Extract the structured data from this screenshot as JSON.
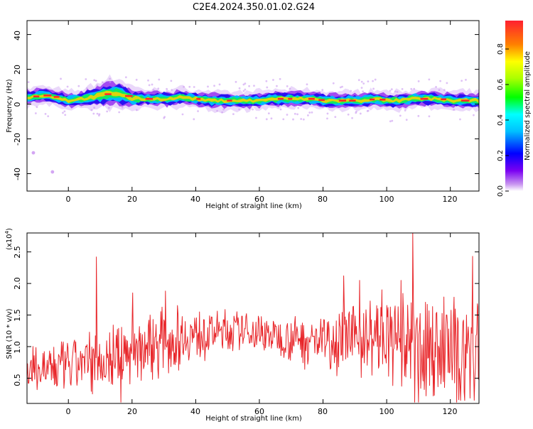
{
  "figure": {
    "title": "C2E4.2024.350.01.02.G24"
  },
  "chart_data": [
    {
      "type": "heatmap",
      "xlabel": "Height of straight line (km)",
      "ylabel": "Frequency (Hz)",
      "xlim": [
        -13,
        129
      ],
      "ylim": [
        -50,
        48
      ],
      "xticks": [
        "0",
        "20",
        "40",
        "60",
        "80",
        "100",
        "120"
      ],
      "yticks": [
        "-40",
        "-20",
        "0",
        "20",
        "40"
      ],
      "colorbar": {
        "label": "Normalized spectral amplitude",
        "range": [
          0,
          0.96
        ],
        "ticks": [
          "0.0",
          "0.2",
          "0.4",
          "0.6",
          "0.8"
        ]
      },
      "ridge": {
        "x": [
          -13,
          -8,
          -4,
          0,
          4,
          8,
          12,
          16,
          20,
          24,
          28,
          32,
          36,
          40,
          44,
          48,
          52,
          56,
          60,
          64,
          68,
          72,
          76,
          80,
          84,
          88,
          92,
          96,
          100,
          104,
          108,
          112,
          116,
          120,
          124,
          129
        ],
        "center_hz": [
          4,
          5,
          4,
          2,
          3,
          4,
          6,
          6,
          3,
          3,
          3,
          3,
          4,
          3,
          2,
          2,
          2,
          2,
          2,
          3,
          3,
          3,
          3,
          2,
          2,
          2,
          2,
          3,
          2,
          2,
          3,
          3,
          3,
          2,
          2,
          2
        ],
        "halfwidth_hz": [
          3,
          3,
          3,
          3,
          3,
          4,
          5,
          5,
          4,
          3,
          3,
          3,
          3,
          3,
          3,
          3,
          3,
          3,
          3,
          3,
          3,
          3,
          3,
          3,
          3,
          3,
          3,
          3,
          3,
          3,
          3,
          3,
          3,
          3,
          3,
          3
        ]
      },
      "outliers": [
        {
          "x": -5,
          "y": -39
        },
        {
          "x": -11,
          "y": -28
        }
      ]
    },
    {
      "type": "line",
      "xlabel": "Height of straight line (km)",
      "ylabel": "SNR (10 * v/v)",
      "y_multiplier": "(x10",
      "y_multiplier_exp": "4",
      "xlim": [
        -13,
        129
      ],
      "ylim": [
        0.1,
        2.8
      ],
      "xticks": [
        "0",
        "20",
        "40",
        "60",
        "80",
        "100",
        "120"
      ],
      "yticks": [
        "0.5",
        "1.0",
        "1.5",
        "2.0",
        "2.5"
      ],
      "color": "#e8262a",
      "envelope": {
        "x": [
          -13,
          -5,
          5,
          15,
          25,
          35,
          45,
          55,
          65,
          75,
          85,
          95,
          105,
          115,
          125,
          129
        ],
        "mean": [
          0.6,
          0.65,
          0.72,
          0.85,
          1.02,
          1.15,
          1.22,
          1.25,
          1.18,
          1.1,
          1.12,
          1.15,
          1.05,
          0.95,
          0.92,
          0.9
        ],
        "amp": [
          0.35,
          0.4,
          0.45,
          0.55,
          0.55,
          0.45,
          0.35,
          0.28,
          0.3,
          0.42,
          0.5,
          0.6,
          0.7,
          0.8,
          0.85,
          0.85
        ]
      },
      "peaks": [
        {
          "x": 8.8,
          "y": 2.42
        },
        {
          "x": 108.2,
          "y": 2.8
        },
        {
          "x": 127.0,
          "y": 2.43
        },
        {
          "x": 98.5,
          "y": 1.9
        },
        {
          "x": 86.5,
          "y": 2.12
        },
        {
          "x": 91.5,
          "y": 2.05
        },
        {
          "x": 104.5,
          "y": 2.05
        },
        {
          "x": 128.5,
          "y": 1.68
        },
        {
          "x": 20.2,
          "y": 1.85
        },
        {
          "x": 30.5,
          "y": 1.88
        }
      ],
      "troughs": [
        {
          "x": 108.8,
          "y": 0.12
        },
        {
          "x": 110.0,
          "y": 0.12
        },
        {
          "x": 122.0,
          "y": 0.12
        },
        {
          "x": 127.5,
          "y": 0.15
        },
        {
          "x": 16.5,
          "y": 0.12
        }
      ]
    }
  ]
}
